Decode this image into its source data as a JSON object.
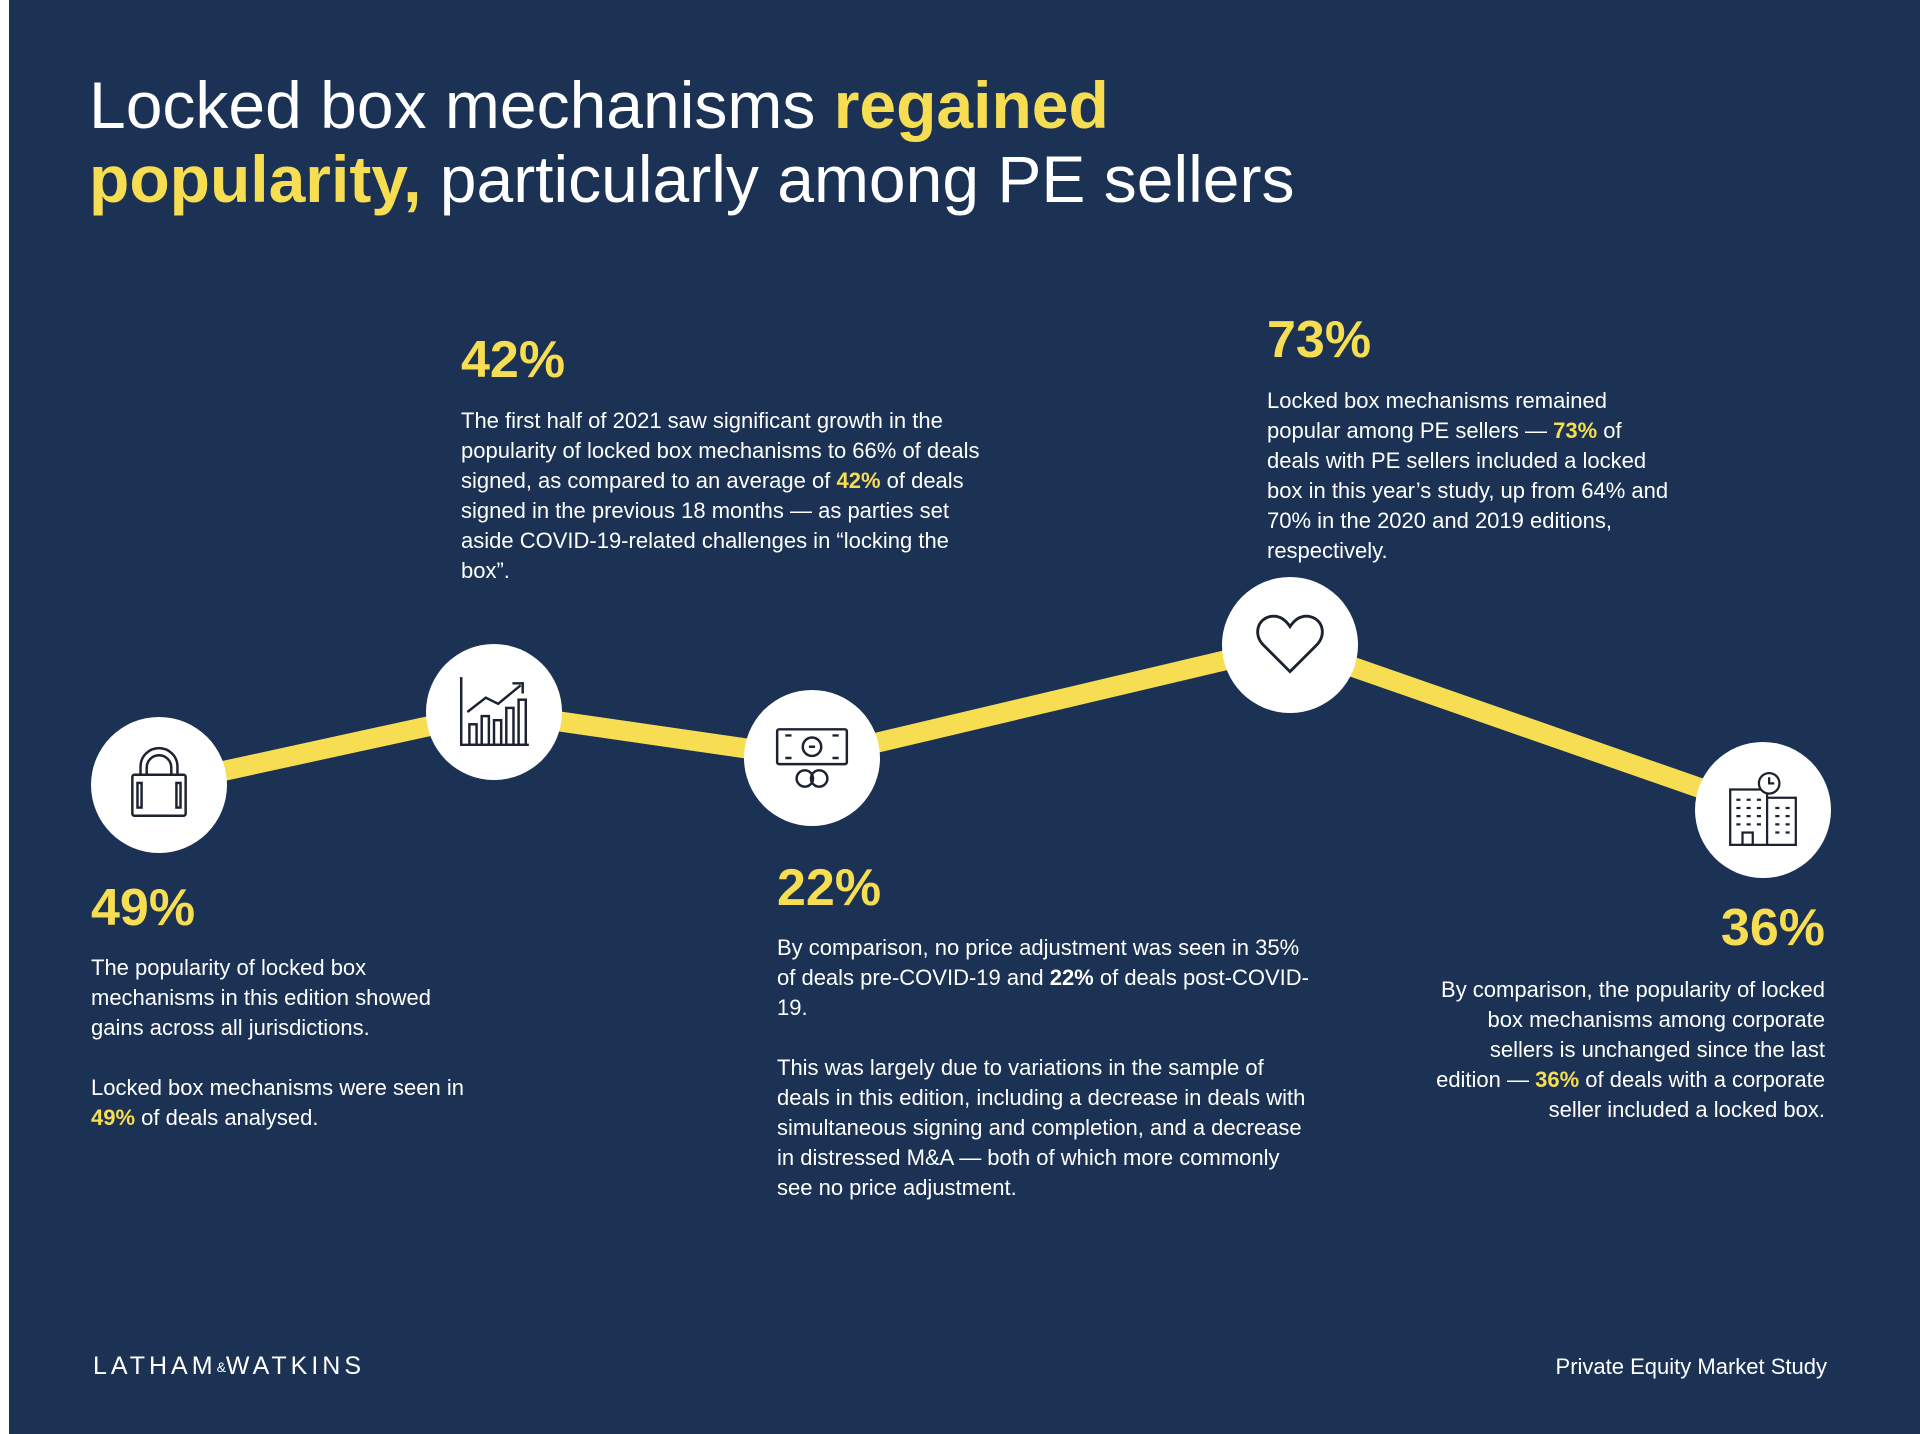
{
  "title": {
    "part1": "Locked box mechanisms ",
    "highlight1": "regained",
    "highlight2": "popularity,",
    "part2": " particularly among PE sellers"
  },
  "colors": {
    "background": "#1b3254",
    "accent": "#f6dd52",
    "text": "#ffffff",
    "node": "#ffffff"
  },
  "chart_data": {
    "type": "line",
    "x": [
      "lock",
      "growth",
      "money",
      "heart",
      "building"
    ],
    "values": [
      49,
      42,
      22,
      73,
      36
    ],
    "value_labels": [
      "49%",
      "42%",
      "22%",
      "73%",
      "36%"
    ],
    "xlabel": "",
    "ylabel": "",
    "grid": false,
    "legend": "none",
    "icons": [
      "lock-icon",
      "chart-growth-icon",
      "money-icon",
      "heart-icon",
      "building-clock-icon"
    ]
  },
  "points": [
    {
      "stat": "49%",
      "paragraphs": [
        [
          {
            "t": "The popularity of locked box mechanisms in this edition showed gains across all jurisdictions."
          }
        ],
        [
          {
            "t": "Locked box mechanisms were seen in "
          },
          {
            "t": "49%",
            "s": "y"
          },
          {
            "t": " of deals analysed."
          }
        ]
      ]
    },
    {
      "stat": "42%",
      "paragraphs": [
        [
          {
            "t": "The first half of 2021 saw significant growth in the popularity of locked box mechanisms to 66% of deals signed, as compared to an average of "
          },
          {
            "t": "42%",
            "s": "y"
          },
          {
            "t": " of deals signed in the previous 18 months — as parties set aside COVID-19-related challenges in “locking the box”."
          }
        ]
      ]
    },
    {
      "stat": "22%",
      "paragraphs": [
        [
          {
            "t": "By comparison, no price adjustment was seen in 35% of deals pre-COVID-19 and "
          },
          {
            "t": "22%",
            "s": "w"
          },
          {
            "t": " of deals post-COVID-19."
          }
        ],
        [
          {
            "t": "This was largely due to variations in the sample of deals in this edition, including a decrease in deals with simultaneous signing and completion, and a decrease in distressed M&A — both of which more commonly see no price adjustment."
          }
        ]
      ]
    },
    {
      "stat": "73%",
      "paragraphs": [
        [
          {
            "t": "Locked box mechanisms remained popular among PE sellers — "
          },
          {
            "t": "73%",
            "s": "y"
          },
          {
            "t": " of deals with PE sellers included a locked box in this year’s study, up from 64% and 70% in the 2020 and 2019 editions, respectively."
          }
        ]
      ]
    },
    {
      "stat": "36%",
      "paragraphs": [
        [
          {
            "t": "By comparison, the popularity of locked box mechanisms among corporate sellers is unchanged since the last edition — "
          },
          {
            "t": "36%",
            "s": "y"
          },
          {
            "t": " of deals with a corporate seller included a locked box."
          }
        ]
      ]
    }
  ],
  "footer": {
    "logo_left": "LATHAM",
    "logo_amp": "&",
    "logo_right": "WATKINS",
    "study": "Private Equity Market Study"
  }
}
